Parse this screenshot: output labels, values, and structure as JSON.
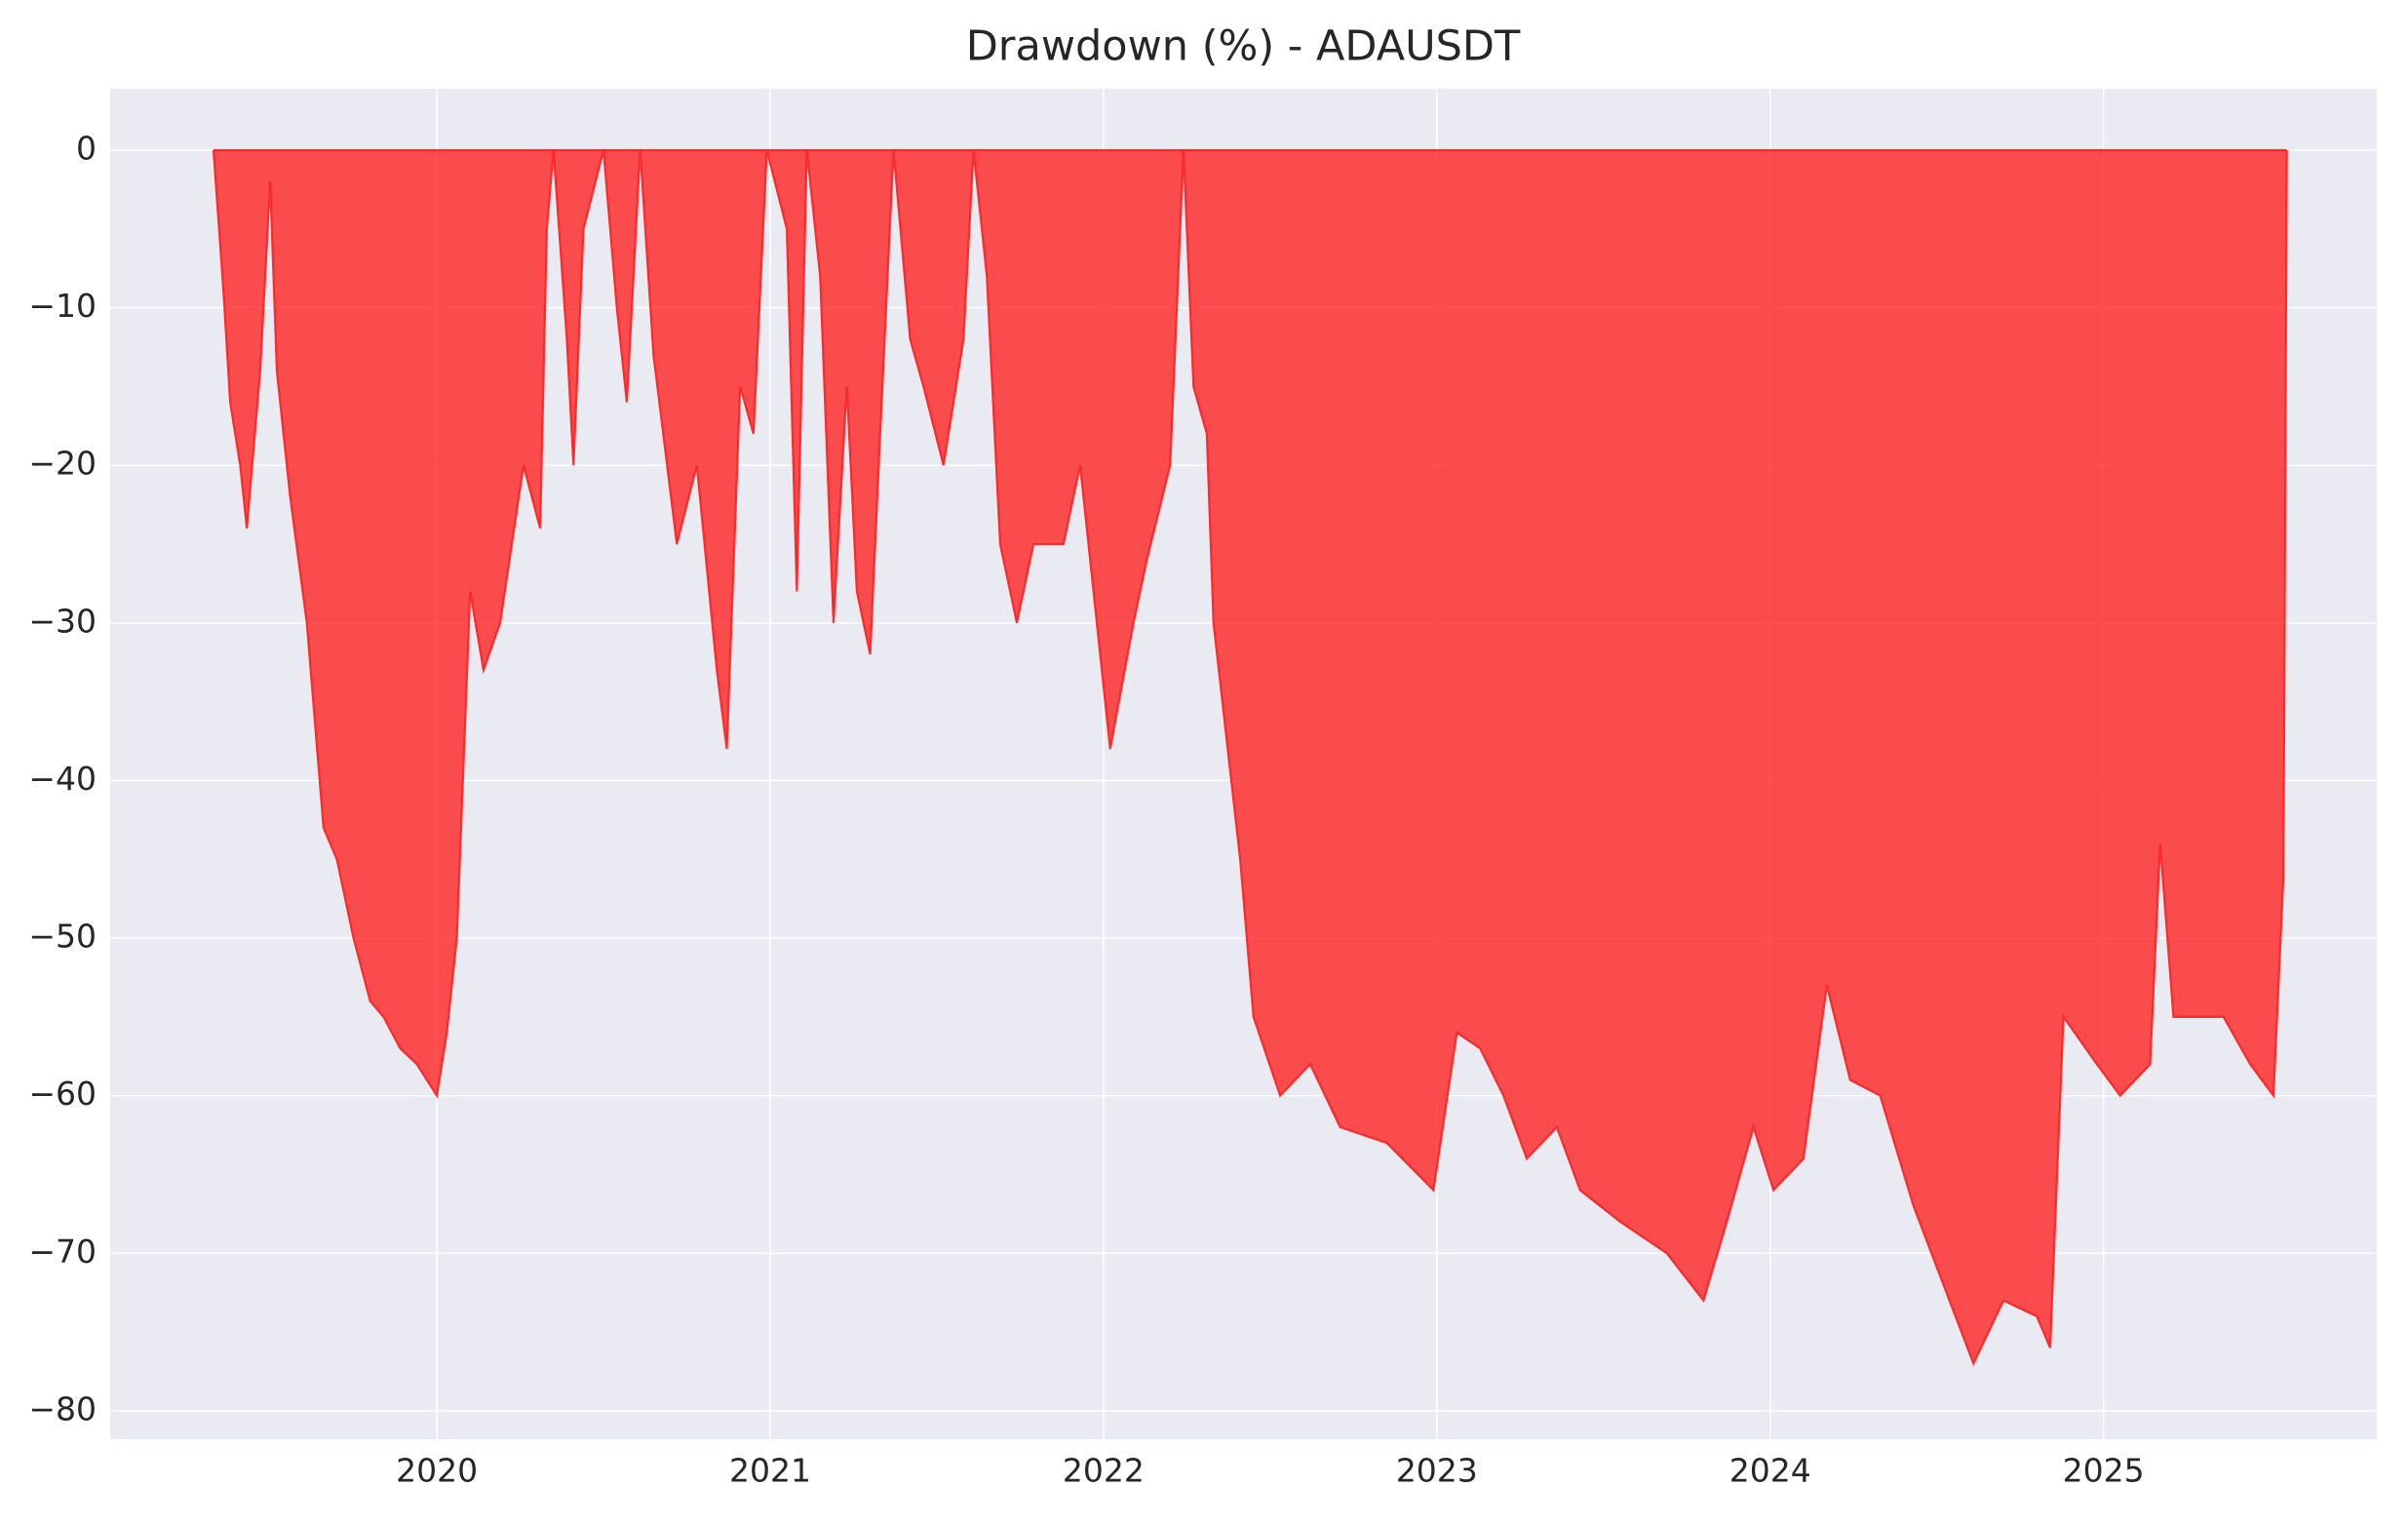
{
  "chart_data": {
    "type": "area",
    "title": "Drawdown (%) - ADAUSDT",
    "x": [
      2019.33,
      2019.36,
      2019.38,
      2019.41,
      2019.43,
      2019.47,
      2019.5,
      2019.52,
      2019.56,
      2019.61,
      2019.66,
      2019.7,
      2019.75,
      2019.8,
      2019.84,
      2019.89,
      2019.94,
      2020.0,
      2020.03,
      2020.06,
      2020.1,
      2020.14,
      2020.19,
      2020.26,
      2020.31,
      2020.33,
      2020.35,
      2020.39,
      2020.41,
      2020.44,
      2020.5,
      2020.54,
      2020.57,
      2020.61,
      2020.65,
      2020.72,
      2020.78,
      2020.84,
      2020.87,
      2020.91,
      2020.95,
      2020.99,
      2021.05,
      2021.08,
      2021.11,
      2021.15,
      2021.19,
      2021.23,
      2021.26,
      2021.3,
      2021.33,
      2021.37,
      2021.42,
      2021.46,
      2021.52,
      2021.58,
      2021.61,
      2021.65,
      2021.69,
      2021.74,
      2021.79,
      2021.88,
      2021.93,
      2021.98,
      2022.02,
      2022.09,
      2022.13,
      2022.2,
      2022.24,
      2022.27,
      2022.31,
      2022.33,
      2022.41,
      2022.45,
      2022.53,
      2022.62,
      2022.71,
      2022.85,
      2022.99,
      2023.06,
      2023.13,
      2023.2,
      2023.27,
      2023.36,
      2023.43,
      2023.55,
      2023.69,
      2023.8,
      2023.87,
      2023.95,
      2024.01,
      2024.1,
      2024.17,
      2024.24,
      2024.33,
      2024.43,
      2024.52,
      2024.61,
      2024.7,
      2024.8,
      2024.84,
      2024.88,
      2024.98,
      2025.05,
      2025.14,
      2025.17,
      2025.21,
      2025.36,
      2025.44,
      2025.51,
      2025.54,
      2025.55
    ],
    "values": [
      0,
      -9,
      -16,
      -20,
      -24,
      -14,
      -2,
      -14,
      -22,
      -30,
      -43,
      -45,
      -50,
      -54,
      -55,
      -57,
      -58,
      -60,
      -56,
      -50,
      -28,
      -33,
      -30,
      -20,
      -24,
      -5,
      0,
      -12,
      -20,
      -5,
      0,
      -10,
      -16,
      0,
      -13,
      -25,
      -20,
      -33,
      -38,
      -15,
      -18,
      0,
      -5,
      -28,
      0,
      -8,
      -30,
      -15,
      -28,
      -32,
      -18,
      0,
      -12,
      -15,
      -20,
      -12,
      0,
      -8,
      -25,
      -30,
      -25,
      -25,
      -20,
      -30,
      -38,
      -30,
      -26,
      -20,
      0,
      -15,
      -18,
      -30,
      -45,
      -55,
      -60,
      -58,
      -62,
      -63,
      -66,
      -56,
      -57,
      -60,
      -64,
      -62,
      -66,
      -68,
      -70,
      -73,
      -68,
      -62,
      -66,
      -64,
      -53,
      -59,
      -60,
      -67,
      -72,
      -77,
      -73,
      -74,
      -76,
      -55,
      -58,
      -60,
      -58,
      -44,
      -55,
      -55,
      -58,
      -60,
      -46,
      0
    ],
    "color": "#ff1f1f",
    "xlim": [
      2019.02,
      2025.82
    ],
    "xticks": [
      2020,
      2021,
      2022,
      2023,
      2024,
      2025
    ],
    "ylim": [
      -81.8,
      3.9
    ],
    "yticks": [
      0,
      {
        "value": -10,
        "label": "−10"
      },
      {
        "value": -20,
        "label": "−20"
      },
      {
        "value": -30,
        "label": "−30"
      },
      {
        "value": -40,
        "label": "−40"
      },
      {
        "value": -50,
        "label": "−50"
      },
      {
        "value": -60,
        "label": "−60"
      },
      {
        "value": -70,
        "label": "−70"
      },
      {
        "value": -80,
        "label": "−80"
      }
    ],
    "grid": true
  }
}
